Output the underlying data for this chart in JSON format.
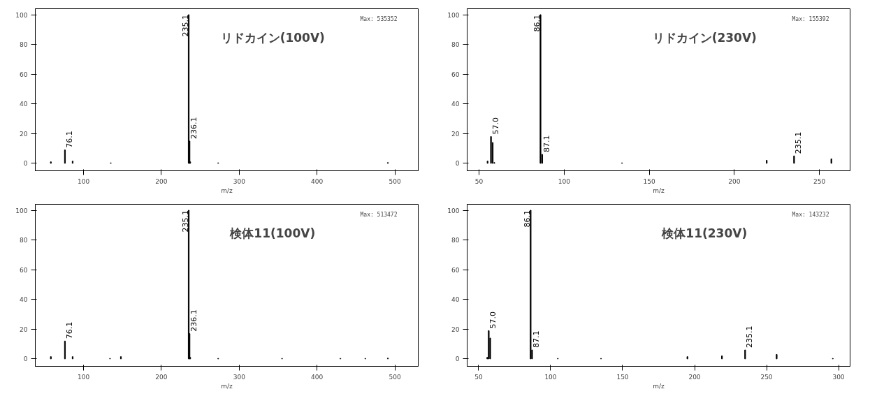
{
  "chart_data": [
    {
      "type": "bar",
      "title": "リドカイン(100V)",
      "xlabel": "m/z",
      "color": "#000000",
      "xlim": [
        38,
        530
      ],
      "ylim": [
        -5,
        104
      ],
      "xticks": [
        100,
        200,
        300,
        400,
        500
      ],
      "yticks": [
        0,
        20,
        40,
        60,
        80,
        100
      ],
      "grid": false,
      "x": [
        58,
        76.1,
        86,
        135,
        235.1,
        236.1,
        237,
        273,
        491
      ],
      "values": [
        1,
        9,
        1.5,
        0.3,
        100,
        15,
        1,
        0.3,
        0.5
      ],
      "annotations": [
        "Max: 535352",
        {
          "text": "76.1",
          "x": 76.1,
          "y": 9
        },
        {
          "text": "235.1",
          "x": 235.1,
          "y": 100
        },
        {
          "text": "236.1",
          "x": 236.1,
          "y": 15
        }
      ]
    },
    {
      "type": "bar",
      "title": "リドカイン(230V)",
      "xlabel": "m/z",
      "color": "#000000",
      "xlim": [
        43,
        268
      ],
      "ylim": [
        -5,
        104
      ],
      "xticks": [
        50,
        100,
        150,
        200,
        250
      ],
      "yticks": [
        0,
        20,
        40,
        60,
        80,
        100
      ],
      "grid": false,
      "x": [
        55,
        57.0,
        58,
        59,
        86.1,
        87.1,
        134,
        219,
        235.1,
        257
      ],
      "values": [
        1.5,
        18,
        14,
        0.5,
        100,
        6,
        0.3,
        2,
        5,
        3
      ],
      "annotations": [
        "Max: 155392",
        {
          "text": "57.0",
          "x": 57.0,
          "y": 18
        },
        {
          "text": "86.1",
          "x": 86.1,
          "y": 100
        },
        {
          "text": "87.1",
          "x": 87.1,
          "y": 6
        },
        {
          "text": "235.1",
          "x": 235.1,
          "y": 5
        }
      ]
    },
    {
      "type": "bar",
      "title": "検体11(100V)",
      "xlabel": "m/z",
      "color": "#000000",
      "xlim": [
        38,
        530
      ],
      "ylim": [
        -5,
        104
      ],
      "xticks": [
        100,
        200,
        300,
        400,
        500
      ],
      "yticks": [
        0,
        20,
        40,
        60,
        80,
        100
      ],
      "grid": false,
      "x": [
        58,
        76.1,
        86,
        134,
        148,
        235.1,
        236.1,
        237,
        273,
        355,
        430,
        462,
        491
      ],
      "values": [
        1.5,
        12,
        1.5,
        0.3,
        1.5,
        100,
        17,
        1,
        0.3,
        0.3,
        0.3,
        0.3,
        0.5
      ],
      "annotations": [
        "Max: 513472",
        {
          "text": "76.1",
          "x": 76.1,
          "y": 12
        },
        {
          "text": "235.1",
          "x": 235.1,
          "y": 100
        },
        {
          "text": "236.1",
          "x": 236.1,
          "y": 17
        }
      ]
    },
    {
      "type": "bar",
      "title": "検体11(230V)",
      "xlabel": "m/z",
      "color": "#000000",
      "xlim": [
        42,
        308
      ],
      "ylim": [
        -5,
        104
      ],
      "xticks": [
        50,
        100,
        150,
        200,
        250,
        300
      ],
      "yticks": [
        0,
        20,
        40,
        60,
        80,
        100
      ],
      "grid": false,
      "x": [
        56,
        57.0,
        58,
        86.1,
        87.1,
        105,
        135,
        195,
        219,
        235.1,
        257,
        296
      ],
      "values": [
        1,
        19,
        14,
        100,
        6,
        0.3,
        0.3,
        1.5,
        2,
        6,
        3,
        0.3
      ],
      "annotations": [
        "Max: 143232",
        {
          "text": "57.0",
          "x": 57.0,
          "y": 19
        },
        {
          "text": "86.1",
          "x": 86.1,
          "y": 100
        },
        {
          "text": "87.1",
          "x": 87.1,
          "y": 6
        },
        {
          "text": "235.1",
          "x": 235.1,
          "y": 6
        }
      ]
    }
  ]
}
